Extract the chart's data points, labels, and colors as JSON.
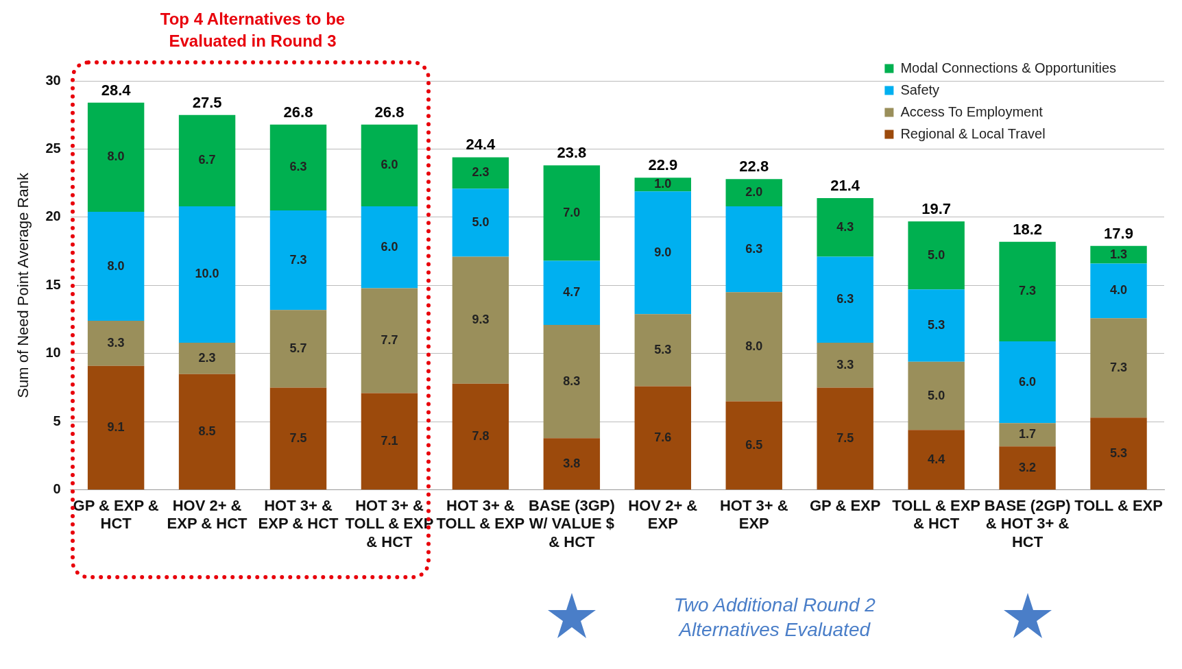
{
  "chart_data": {
    "type": "bar",
    "stacked": true,
    "ylabel": "Sum of Need Point Average Rank",
    "categories": [
      "GP & EXP & HCT",
      "HOV 2+ & EXP & HCT",
      "HOT 3+ & EXP & HCT",
      "HOT 3+ & TOLL & EXP & HCT",
      "HOT 3+ & TOLL & EXP",
      "BASE (3GP) W/ VALUE $ & HCT",
      "HOV 2+ & EXP",
      "HOT 3+ & EXP",
      "GP & EXP",
      "TOLL & EXP & HCT",
      "BASE (2GP) & HOT 3+ & HCT",
      "TOLL & EXP"
    ],
    "series": [
      {
        "name": "Regional & Local Travel",
        "color": "#9c4a0c",
        "values": [
          9.1,
          8.5,
          7.5,
          7.1,
          7.8,
          3.8,
          7.6,
          6.5,
          7.5,
          4.4,
          3.2,
          5.3
        ],
        "value_labels": [
          "9.1",
          "8.5",
          "7.5",
          "7.1",
          "7.8",
          "3.8",
          "7.6",
          "6.5",
          "7.5",
          "4.4",
          "3.2",
          "5.3"
        ]
      },
      {
        "name": "Access To Employment",
        "color": "#9a8f5b",
        "values": [
          3.3,
          2.3,
          5.7,
          7.7,
          9.3,
          8.3,
          5.3,
          8.0,
          3.3,
          5.0,
          1.7,
          7.3
        ],
        "value_labels": [
          "3.3",
          "2.3",
          "5.7",
          "7.7",
          "9.3",
          "8.3",
          "5.3",
          "8.0",
          "3.3",
          "5.0",
          "1.7",
          "7.3"
        ]
      },
      {
        "name": "Safety",
        "color": "#00b0f0",
        "values": [
          8.0,
          10.0,
          7.3,
          6.0,
          5.0,
          4.7,
          9.0,
          6.3,
          6.3,
          5.3,
          6.0,
          4.0
        ],
        "value_labels": [
          "8.0",
          "10.0",
          "7.3",
          "6.0",
          "5.0",
          "4.7",
          "9.0",
          "6.3",
          "6.3",
          "5.3",
          "6.0",
          "4.0"
        ]
      },
      {
        "name": "Modal Connections & Opportunities",
        "color": "#00b050",
        "values": [
          8.0,
          6.7,
          6.3,
          6.0,
          2.3,
          7.0,
          1.0,
          2.0,
          4.3,
          5.0,
          7.3,
          1.3
        ],
        "value_labels": [
          "8.0",
          "6.7",
          "6.3",
          "6.0",
          "2.3",
          "7.0",
          "1.0",
          "2.0",
          "4.3",
          "5.0",
          "7.3",
          "1.3"
        ]
      }
    ],
    "totals": [
      "28.4",
      "27.5",
      "26.8",
      "26.8",
      "24.4",
      "23.8",
      "22.9",
      "22.8",
      "21.4",
      "19.7",
      "18.2",
      "17.9"
    ],
    "ylim": [
      0,
      30
    ],
    "yticks": [
      0,
      5,
      10,
      15,
      20,
      25,
      30
    ],
    "grid": "y",
    "legend": "top right",
    "annotations": [
      "Top 4 Alternatives to be Evaluated in Round 3",
      "Two Additional Round 2 Alternatives Evaluated"
    ]
  }
}
